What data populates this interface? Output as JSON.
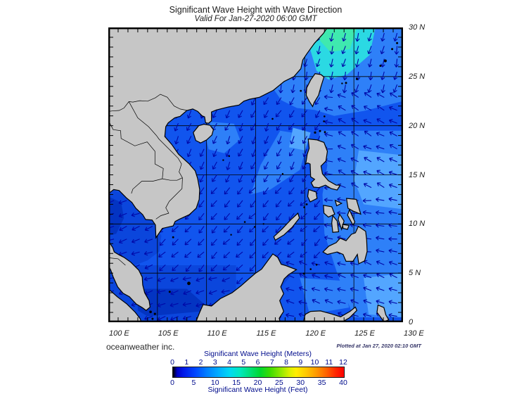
{
  "header": {
    "title": "Significant Wave Height with Wave Direction",
    "subtitle": "Valid For Jan-27-2020 06:00 GMT"
  },
  "map": {
    "lat_labels": [
      "30 N",
      "25 N",
      "20 N",
      "15 N",
      "10 N",
      "5 N",
      "0"
    ],
    "lon_labels": [
      "100 E",
      "105 E",
      "110 E",
      "115 E",
      "120 E",
      "125 E",
      "130 E"
    ]
  },
  "footer": {
    "credit": "oceanweather inc.",
    "plotted": "Plotted at Jan 27, 2020 02:10 GMT"
  },
  "legend": {
    "title_meters": "Significant Wave Height (Meters)",
    "title_feet": "Significant Wave Height (Feet)",
    "meters_ticks": [
      "0",
      "1",
      "2",
      "3",
      "4",
      "5",
      "6",
      "7",
      "8",
      "9",
      "10",
      "11",
      "12"
    ],
    "feet_ticks": [
      "0",
      "5",
      "10",
      "15",
      "20",
      "25",
      "30",
      "35",
      "40"
    ]
  },
  "colors": {
    "land": "#c6c6c6",
    "coastline": "#000000",
    "arrow": "#0008A8",
    "grid": "#000000",
    "legend_text": "#000C8C",
    "water_base": "#1155EE",
    "water_deep": "#0B46DC",
    "water_dark": "#0334C2",
    "water_midlight": "#2E80F8",
    "water_light": "#53A6FF",
    "water_cyan": "#2BD9E3",
    "water_teal": "#3FE9AF",
    "scale_stops": [
      "#000000",
      "#0000c8",
      "#0046ff",
      "#00b0ff",
      "#00e8c0",
      "#00d830",
      "#90e800",
      "#ffee00",
      "#ffc800",
      "#ff6000",
      "#fe0000"
    ]
  }
}
